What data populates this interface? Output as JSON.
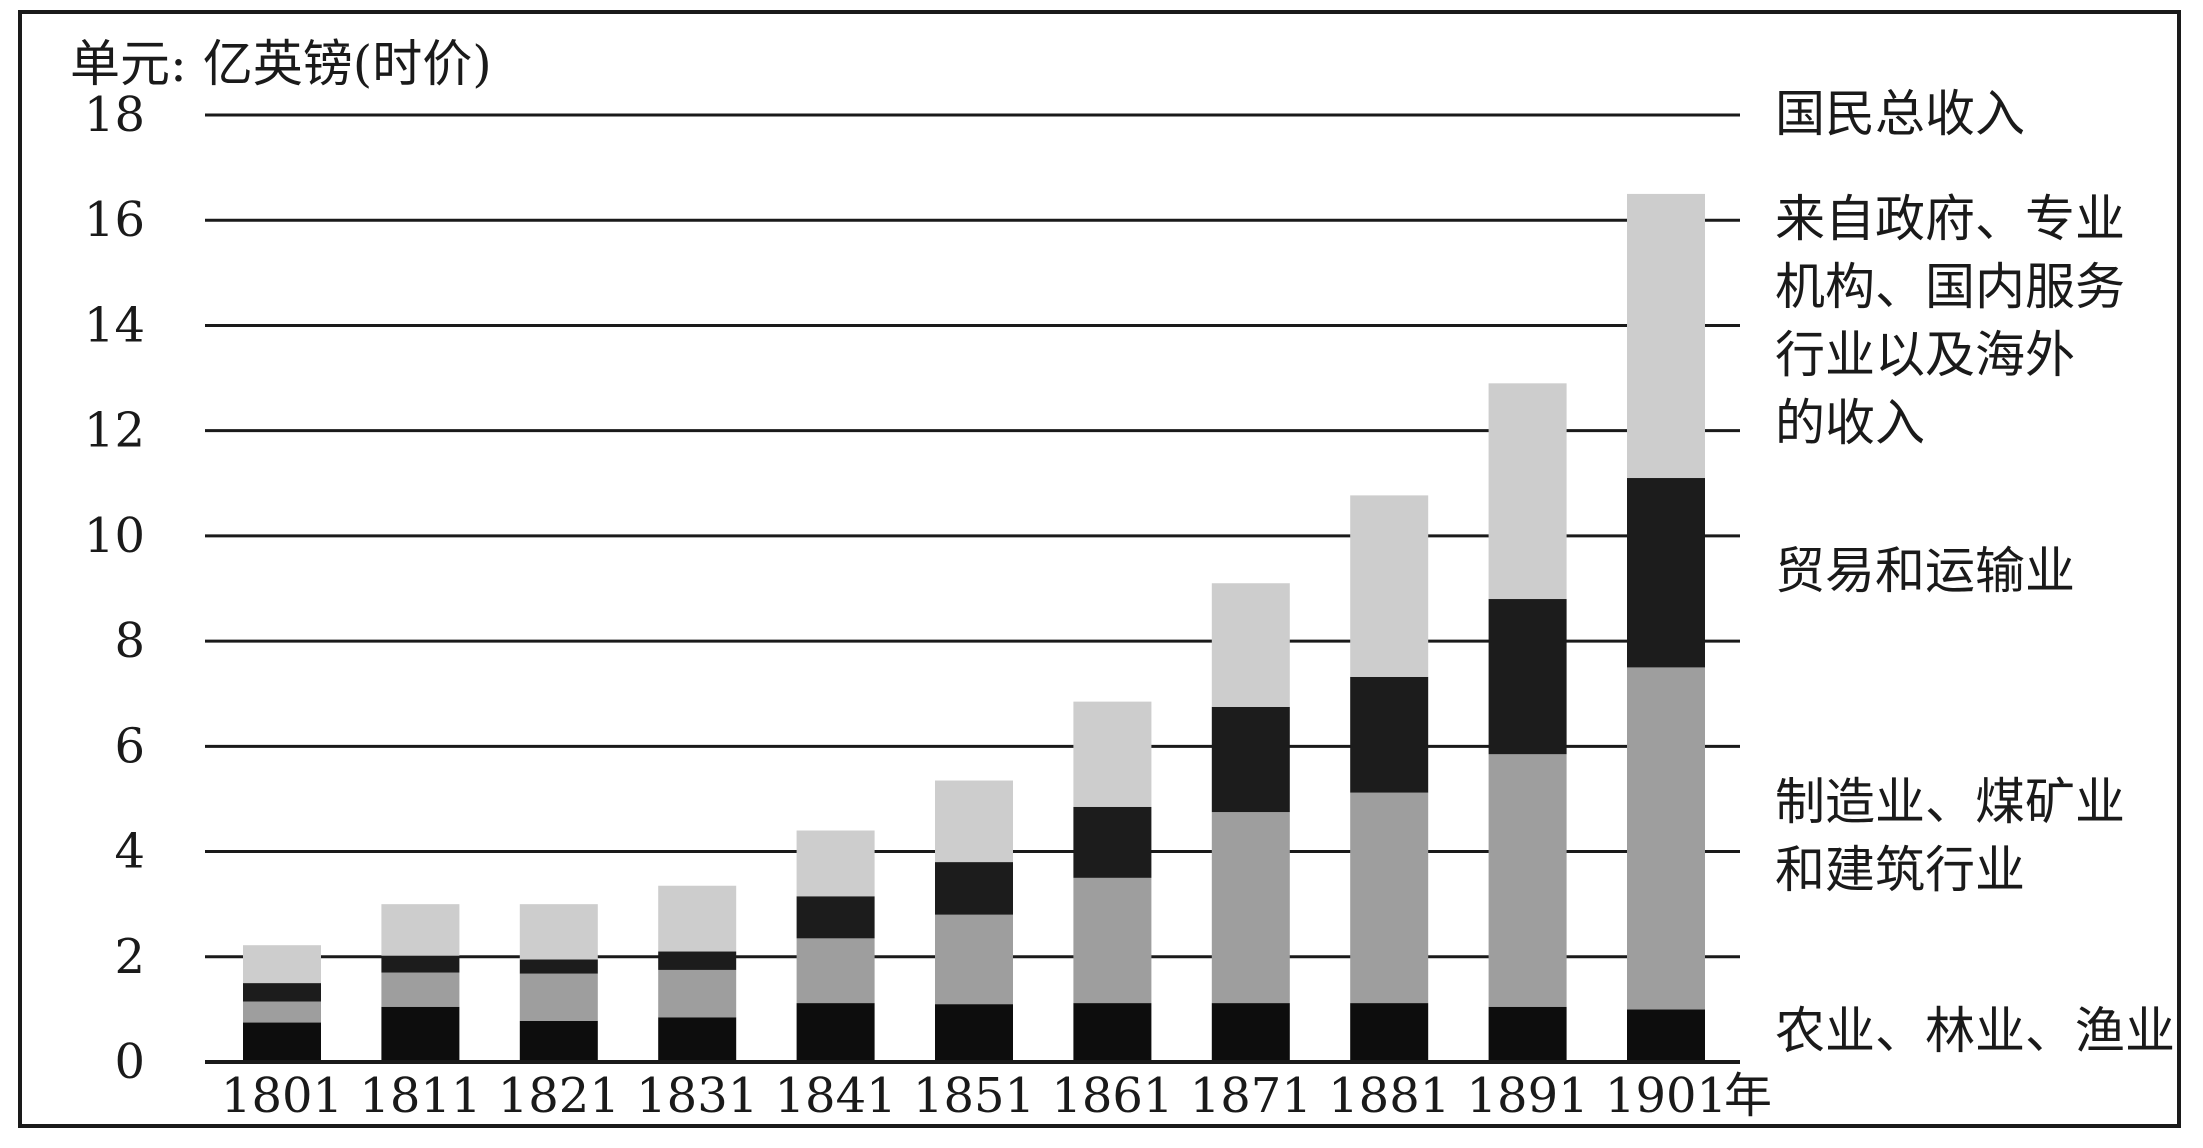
{
  "chart_data": {
    "type": "bar",
    "stacked": true,
    "title": "",
    "unit_label": "单元: 亿英镑(时价)",
    "xlabel": "",
    "x_suffix": "年",
    "ylim": [
      0,
      18
    ],
    "yticks": [
      "0",
      "2",
      "4",
      "6",
      "8",
      "10",
      "12",
      "14",
      "16",
      "18"
    ],
    "grid": true,
    "categories": [
      "1801",
      "1811",
      "1821",
      "1831",
      "1841",
      "1851",
      "1861",
      "1871",
      "1881",
      "1891",
      "1901"
    ],
    "series": [
      {
        "name": "农业、林业、渔业",
        "color": "#0d0d0d",
        "values": [
          0.75,
          1.05,
          0.78,
          0.85,
          1.12,
          1.1,
          1.12,
          1.12,
          1.12,
          1.05,
          1.0
        ]
      },
      {
        "name": "制造业、煤矿业和建筑行业",
        "color": "#9e9e9e",
        "values": [
          0.4,
          0.65,
          0.9,
          0.9,
          1.23,
          1.7,
          2.38,
          3.63,
          4.0,
          4.8,
          6.5
        ]
      },
      {
        "name": "贸易和运输业",
        "color": "#1c1c1c",
        "values": [
          0.35,
          0.32,
          0.27,
          0.35,
          0.8,
          1.0,
          1.35,
          2.0,
          2.2,
          2.95,
          3.6
        ]
      },
      {
        "name": "来自政府、专业机构、国内服务行业以及海外的收入",
        "color": "#cdcdcd",
        "values": [
          0.72,
          0.98,
          1.05,
          1.25,
          1.25,
          1.55,
          2.0,
          2.35,
          3.45,
          4.1,
          5.4
        ]
      }
    ]
  },
  "legend": {
    "national_income": "国民总收入",
    "services_lines": [
      "来自政府、专业",
      "机构、国内服务",
      "行业以及海外",
      "的收入"
    ],
    "trade": "贸易和运输业",
    "manufacturing_lines": [
      "制造业、煤矿业",
      "和建筑行业"
    ],
    "agriculture": "农业、林业、渔业"
  }
}
